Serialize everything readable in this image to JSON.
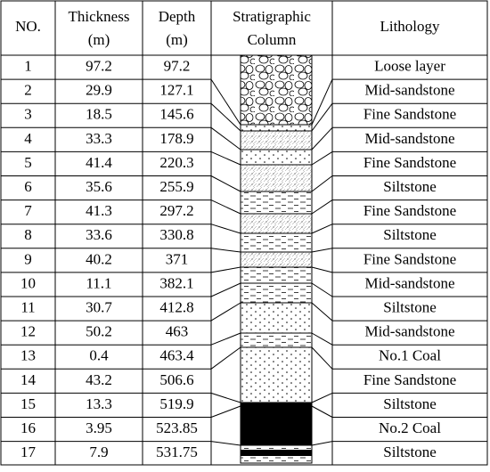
{
  "table": {
    "header": [
      [
        "NO."
      ],
      [
        "Thickness",
        "(m)"
      ],
      [
        "Depth",
        "(m)"
      ],
      [
        "Stratigraphic",
        "Column"
      ],
      [
        "Lithology"
      ]
    ],
    "rows": [
      [
        "1",
        "97.2",
        "97.2",
        "Loose layer"
      ],
      [
        "2",
        "29.9",
        "127.1",
        "Mid-sandstone"
      ],
      [
        "3",
        "18.5",
        "145.6",
        "Fine Sandstone"
      ],
      [
        "4",
        "33.3",
        "178.9",
        "Mid-sandstone"
      ],
      [
        "5",
        "41.4",
        "220.3",
        "Fine Sandstone"
      ],
      [
        "6",
        "35.6",
        "255.9",
        "Siltstone"
      ],
      [
        "7",
        "41.3",
        "297.2",
        "Fine Sandstone"
      ],
      [
        "8",
        "33.6",
        "330.8",
        "Siltstone"
      ],
      [
        "9",
        "40.2",
        "371",
        "Fine Sandstone"
      ],
      [
        "10",
        "11.1",
        "382.1",
        "Mid-sandstone"
      ],
      [
        "11",
        "30.7",
        "412.8",
        "Siltstone"
      ],
      [
        "12",
        "50.2",
        "463",
        "Mid-sandstone"
      ],
      [
        "13",
        "0.4",
        "463.4",
        "No.1 Coal"
      ],
      [
        "14",
        "43.2",
        "506.6",
        "Fine Sandstone"
      ],
      [
        "15",
        "13.3",
        "519.9",
        "Siltstone"
      ],
      [
        "16",
        "3.95",
        "523.85",
        "No.2 Coal"
      ],
      [
        "17",
        "7.9",
        "531.75",
        "Siltstone"
      ]
    ]
  }
}
